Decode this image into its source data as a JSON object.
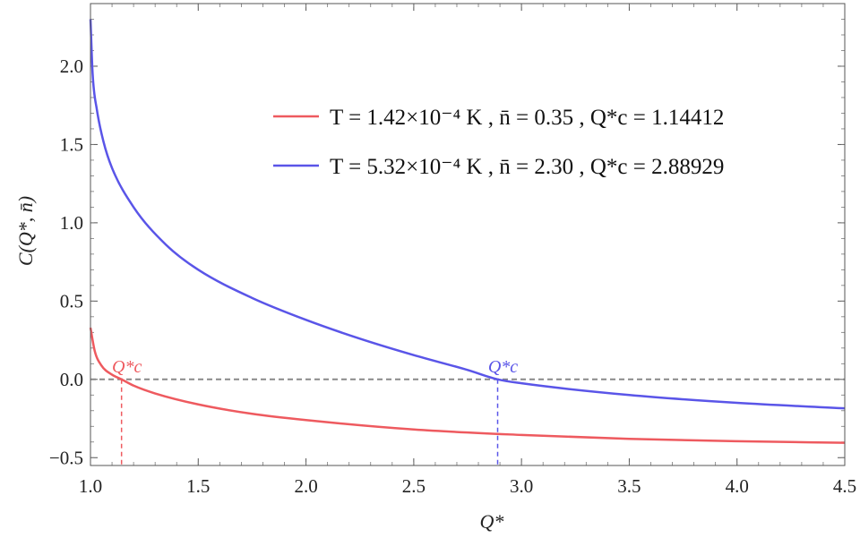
{
  "chart_data": {
    "type": "line",
    "title": "",
    "xlabel": "Q*",
    "ylabel": "C(Q*, n̄)",
    "xlim": [
      1.0,
      4.5
    ],
    "ylim": [
      -0.55,
      2.4
    ],
    "x_ticks": [
      "1.0",
      "1.5",
      "2.0",
      "2.5",
      "3.0",
      "3.5",
      "4.0",
      "4.5"
    ],
    "y_ticks": [
      "−0.5",
      "0.0",
      "0.5",
      "1.0",
      "1.5",
      "2.0"
    ],
    "legend_position": "top-right",
    "reference_line": {
      "y": 0.0,
      "style": "dashed",
      "color": "#888888"
    },
    "series": [
      {
        "name": "T = 1.42×10⁻⁴ K ,   n̄ = 0.35 ,   Q*c = 1.14412",
        "color": "#ee5a5f",
        "critical_x": 1.14412,
        "marker_label": "Q*c",
        "x": [
          1.0,
          1.02,
          1.05,
          1.1,
          1.14412,
          1.2,
          1.3,
          1.5,
          1.75,
          2.0,
          2.5,
          3.0,
          3.5,
          4.0,
          4.5
        ],
        "values": [
          0.33,
          0.18,
          0.09,
          0.03,
          0.0,
          -0.04,
          -0.09,
          -0.16,
          -0.22,
          -0.26,
          -0.32,
          -0.355,
          -0.38,
          -0.395,
          -0.405
        ]
      },
      {
        "name": "T = 5.32×10⁻⁴ K ,   n̄ = 2.30 ,   Q*c = 2.88929",
        "color": "#5a55e8",
        "critical_x": 2.88929,
        "marker_label": "Q*c",
        "x": [
          1.0,
          1.01,
          1.03,
          1.06,
          1.1,
          1.2,
          1.35,
          1.5,
          1.75,
          2.0,
          2.25,
          2.5,
          2.75,
          2.88929,
          3.0,
          3.5,
          4.0,
          4.5
        ],
        "values": [
          2.3,
          1.95,
          1.72,
          1.52,
          1.35,
          1.1,
          0.86,
          0.7,
          0.52,
          0.38,
          0.26,
          0.155,
          0.06,
          0.0,
          -0.025,
          -0.1,
          -0.15,
          -0.185
        ]
      }
    ]
  }
}
